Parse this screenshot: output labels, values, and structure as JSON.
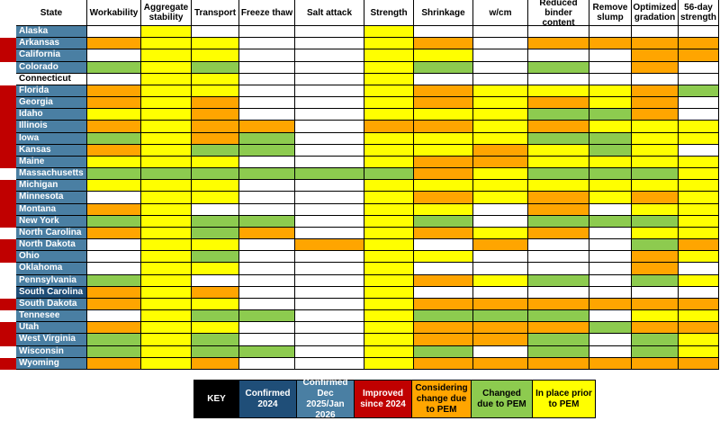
{
  "colors": {
    "confirmed_2024": "#1F4E78",
    "confirmed_dec": "#4A7FA3",
    "improved": "#C00000",
    "considering": "#FFA500",
    "changed": "#8DCB4F",
    "in_place": "#FFFF00",
    "none": "#FFFFFF"
  },
  "key": {
    "title": "KEY",
    "items": [
      {
        "label": "Confirmed 2024",
        "color": "#1F4E78",
        "text_color": "#FFFFFF"
      },
      {
        "label": "Confirmed Dec 2025/Jan 2026",
        "color": "#4A7FA3",
        "text_color": "#FFFFFF"
      },
      {
        "label": "Improved since 2024",
        "color": "#C00000",
        "text_color": "#FFFFFF"
      },
      {
        "label": "Considering change due to PEM",
        "color": "#FFA500",
        "text_color": "#000000"
      },
      {
        "label": "Changed due to PEM",
        "color": "#8DCB4F",
        "text_color": "#000000"
      },
      {
        "label": "In place prior to PEM",
        "color": "#FFFF00",
        "text_color": "#000000"
      }
    ]
  },
  "chart_data": {
    "type": "table",
    "columns": [
      "State",
      "Workability",
      "Aggregate stability",
      "Transport",
      "Freeze thaw",
      "Salt attack",
      "Strength",
      "Shrinkage",
      "w/cm",
      "Reduced binder content",
      "Remove slump",
      "Optimized gradation",
      "56-day strength"
    ],
    "code_legend": {
      "0": "none",
      "Y": "In place prior to PEM",
      "G": "Changed due to PEM",
      "O": "Considering change due to PEM"
    },
    "rows": [
      {
        "state": "Alaska",
        "status": "Confirmed Dec 2025/Jan 2026",
        "improved": false,
        "cells": [
          "0",
          "Y",
          "0",
          "0",
          "0",
          "Y",
          "0",
          "0",
          "0",
          "0",
          "0",
          "0"
        ]
      },
      {
        "state": "Arkansas",
        "status": "Confirmed Dec 2025/Jan 2026",
        "improved": true,
        "cells": [
          "O",
          "Y",
          "Y",
          "0",
          "0",
          "Y",
          "O",
          "0",
          "O",
          "O",
          "O",
          "O"
        ]
      },
      {
        "state": "California",
        "status": "Confirmed Dec 2025/Jan 2026",
        "improved": true,
        "cells": [
          "0",
          "Y",
          "Y",
          "0",
          "0",
          "Y",
          "Y",
          "0",
          "0",
          "0",
          "O",
          "O"
        ]
      },
      {
        "state": "Colorado",
        "status": "Confirmed Dec 2025/Jan 2026",
        "improved": false,
        "cells": [
          "G",
          "Y",
          "G",
          "0",
          "0",
          "Y",
          "G",
          "0",
          "G",
          "0",
          "O",
          "0"
        ]
      },
      {
        "state": "Connecticut",
        "status": "None",
        "improved": false,
        "cells": [
          "0",
          "Y",
          "Y",
          "0",
          "0",
          "Y",
          "0",
          "0",
          "0",
          "0",
          "0",
          "0"
        ]
      },
      {
        "state": "Florida",
        "status": "Confirmed Dec 2025/Jan 2026",
        "improved": true,
        "cells": [
          "O",
          "Y",
          "Y",
          "0",
          "0",
          "Y",
          "O",
          "Y",
          "Y",
          "Y",
          "O",
          "G"
        ]
      },
      {
        "state": "Georgia",
        "status": "Confirmed Dec 2025/Jan 2026",
        "improved": true,
        "cells": [
          "O",
          "Y",
          "O",
          "0",
          "0",
          "Y",
          "O",
          "Y",
          "O",
          "Y",
          "O",
          "0"
        ]
      },
      {
        "state": "Idaho",
        "status": "Confirmed Dec 2025/Jan 2026",
        "improved": true,
        "cells": [
          "Y",
          "Y",
          "O",
          "0",
          "0",
          "Y",
          "Y",
          "Y",
          "G",
          "G",
          "O",
          "0"
        ]
      },
      {
        "state": "Illinois",
        "status": "Confirmed Dec 2025/Jan 2026",
        "improved": true,
        "cells": [
          "O",
          "Y",
          "O",
          "O",
          "0",
          "O",
          "O",
          "Y",
          "O",
          "Y",
          "Y",
          "Y"
        ]
      },
      {
        "state": "Iowa",
        "status": "Confirmed Dec 2025/Jan 2026",
        "improved": true,
        "cells": [
          "G",
          "Y",
          "O",
          "G",
          "0",
          "Y",
          "Y",
          "Y",
          "G",
          "G",
          "Y",
          "Y"
        ]
      },
      {
        "state": "Kansas",
        "status": "Confirmed Dec 2025/Jan 2026",
        "improved": true,
        "cells": [
          "O",
          "Y",
          "G",
          "G",
          "0",
          "Y",
          "Y",
          "O",
          "Y",
          "G",
          "Y",
          "0"
        ]
      },
      {
        "state": "Maine",
        "status": "Confirmed Dec 2025/Jan 2026",
        "improved": true,
        "cells": [
          "Y",
          "Y",
          "Y",
          "0",
          "0",
          "Y",
          "O",
          "O",
          "Y",
          "Y",
          "Y",
          "Y"
        ]
      },
      {
        "state": "Massachusetts",
        "status": "Confirmed Dec 2025/Jan 2026",
        "improved": false,
        "cells": [
          "G",
          "G",
          "G",
          "G",
          "G",
          "G",
          "O",
          "Y",
          "G",
          "G",
          "G",
          "Y"
        ]
      },
      {
        "state": "Michigan",
        "status": "Confirmed Dec 2025/Jan 2026",
        "improved": true,
        "cells": [
          "Y",
          "Y",
          "Y",
          "0",
          "0",
          "Y",
          "Y",
          "Y",
          "Y",
          "Y",
          "Y",
          "Y"
        ]
      },
      {
        "state": "Minnesota",
        "status": "Confirmed Dec 2025/Jan 2026",
        "improved": true,
        "cells": [
          "0",
          "Y",
          "Y",
          "0",
          "0",
          "Y",
          "O",
          "Y",
          "O",
          "Y",
          "O",
          "Y"
        ]
      },
      {
        "state": "Montana",
        "status": "Confirmed Dec 2025/Jan 2026",
        "improved": true,
        "cells": [
          "O",
          "Y",
          "0",
          "0",
          "0",
          "Y",
          "Y",
          "0",
          "O",
          "0",
          "Y",
          "Y"
        ]
      },
      {
        "state": "New York",
        "status": "Confirmed Dec 2025/Jan 2026",
        "improved": true,
        "cells": [
          "G",
          "Y",
          "G",
          "G",
          "0",
          "Y",
          "G",
          "0",
          "G",
          "G",
          "G",
          "Y"
        ]
      },
      {
        "state": "North Carolina",
        "status": "Confirmed Dec 2025/Jan 2026",
        "improved": false,
        "cells": [
          "O",
          "Y",
          "G",
          "O",
          "0",
          "Y",
          "O",
          "Y",
          "O",
          "0",
          "Y",
          "Y"
        ]
      },
      {
        "state": "North Dakota",
        "status": "Confirmed Dec 2025/Jan 2026",
        "improved": true,
        "cells": [
          "0",
          "Y",
          "Y",
          "0",
          "O",
          "Y",
          "0",
          "O",
          "0",
          "0",
          "G",
          "O"
        ]
      },
      {
        "state": "Ohio",
        "status": "Confirmed Dec 2025/Jan 2026",
        "improved": true,
        "cells": [
          "0",
          "Y",
          "G",
          "0",
          "0",
          "Y",
          "Y",
          "0",
          "0",
          "0",
          "O",
          "Y"
        ]
      },
      {
        "state": "Oklahoma",
        "status": "Confirmed Dec 2025/Jan 2026",
        "improved": false,
        "cells": [
          "0",
          "Y",
          "Y",
          "0",
          "0",
          "Y",
          "0",
          "0",
          "0",
          "0",
          "O",
          "0"
        ]
      },
      {
        "state": "Pennsylvania",
        "status": "Confirmed Dec 2025/Jan 2026",
        "improved": false,
        "cells": [
          "G",
          "Y",
          "0",
          "0",
          "0",
          "Y",
          "O",
          "Y",
          "G",
          "0",
          "G",
          "Y"
        ]
      },
      {
        "state": "South Carolina",
        "status": "Confirmed 2024",
        "improved": false,
        "cells": [
          "O",
          "Y",
          "O",
          "0",
          "0",
          "Y",
          "0",
          "0",
          "0",
          "0",
          "0",
          "0"
        ]
      },
      {
        "state": "South Dakota",
        "status": "Confirmed Dec 2025/Jan 2026",
        "improved": true,
        "cells": [
          "O",
          "Y",
          "Y",
          "0",
          "0",
          "Y",
          "O",
          "O",
          "O",
          "O",
          "O",
          "O"
        ]
      },
      {
        "state": "Tennesee",
        "status": "Confirmed Dec 2025/Jan 2026",
        "improved": false,
        "cells": [
          "0",
          "Y",
          "G",
          "G",
          "0",
          "Y",
          "G",
          "G",
          "G",
          "0",
          "Y",
          "Y"
        ]
      },
      {
        "state": "Utah",
        "status": "Confirmed Dec 2025/Jan 2026",
        "improved": true,
        "cells": [
          "O",
          "Y",
          "Y",
          "0",
          "0",
          "Y",
          "O",
          "O",
          "O",
          "G",
          "O",
          "O"
        ]
      },
      {
        "state": "West Virginia",
        "status": "Confirmed Dec 2025/Jan 2026",
        "improved": true,
        "cells": [
          "G",
          "Y",
          "G",
          "0",
          "0",
          "Y",
          "O",
          "O",
          "G",
          "0",
          "G",
          "Y"
        ]
      },
      {
        "state": "Wisconsin",
        "status": "Confirmed Dec 2025/Jan 2026",
        "improved": false,
        "cells": [
          "G",
          "Y",
          "G",
          "G",
          "0",
          "Y",
          "G",
          "0",
          "G",
          "0",
          "G",
          "Y"
        ]
      },
      {
        "state": "Wyoming",
        "status": "Confirmed Dec 2025/Jan 2026",
        "improved": true,
        "cells": [
          "O",
          "Y",
          "O",
          "0",
          "0",
          "Y",
          "O",
          "O",
          "O",
          "O",
          "O",
          "O"
        ]
      }
    ]
  }
}
